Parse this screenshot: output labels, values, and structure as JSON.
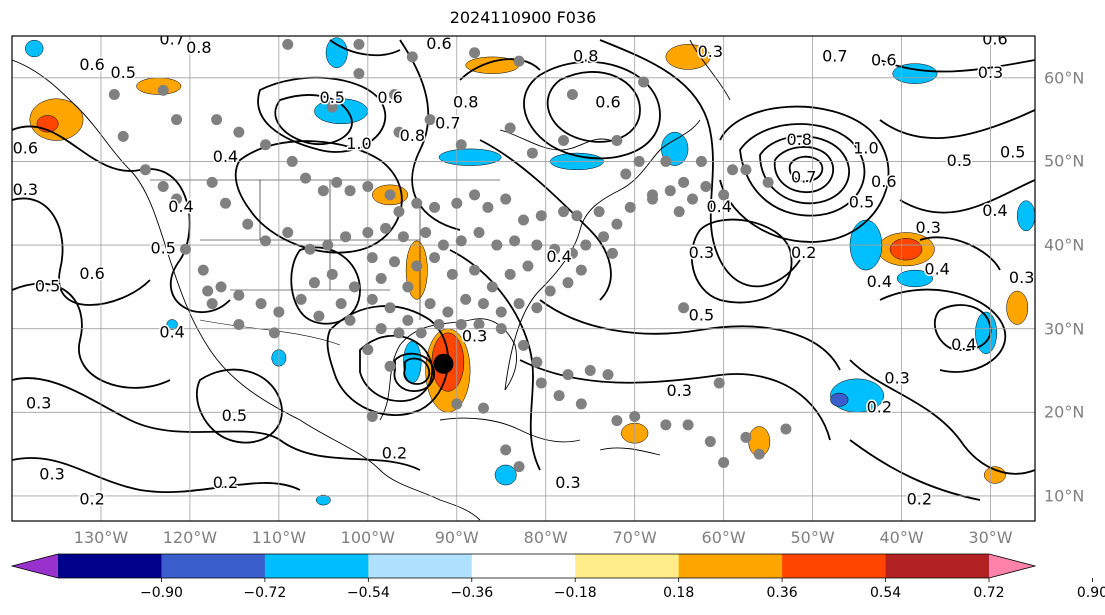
{
  "title": "2024110900 F036",
  "map": {
    "projection": "plate-carree",
    "lon_range": [
      -140,
      -25
    ],
    "lat_range": [
      7,
      65
    ],
    "lon_labels": [
      {
        "lon": -130,
        "text": "130°W"
      },
      {
        "lon": -120,
        "text": "120°W"
      },
      {
        "lon": -110,
        "text": "110°W"
      },
      {
        "lon": -100,
        "text": "100°W"
      },
      {
        "lon": -90,
        "text": "90°W"
      },
      {
        "lon": -80,
        "text": "80°W"
      },
      {
        "lon": -70,
        "text": "70°W"
      },
      {
        "lon": -60,
        "text": "60°W"
      },
      {
        "lon": -50,
        "text": "50°W"
      },
      {
        "lon": -40,
        "text": "40°W"
      },
      {
        "lon": -30,
        "text": "30°W"
      }
    ],
    "lat_labels": [
      {
        "lat": 60,
        "text": "60°N"
      },
      {
        "lat": 50,
        "text": "50°N"
      },
      {
        "lat": 40,
        "text": "40°N"
      },
      {
        "lat": 30,
        "text": "30°N"
      },
      {
        "lat": 20,
        "text": "20°N"
      },
      {
        "lat": 10,
        "text": "10°N"
      }
    ],
    "gridlines": true,
    "contour_labels": [
      {
        "lon": -127.5,
        "lat": 60.5,
        "text": "0.5"
      },
      {
        "lon": -131,
        "lat": 61.5,
        "text": "0.6"
      },
      {
        "lon": -119,
        "lat": 63.5,
        "text": "0.8"
      },
      {
        "lon": -122,
        "lat": 64.5,
        "text": "0.7"
      },
      {
        "lon": -92,
        "lat": 64,
        "text": "0.6"
      },
      {
        "lon": -75.5,
        "lat": 62.5,
        "text": "0.8"
      },
      {
        "lon": -73,
        "lat": 57,
        "text": "0.6"
      },
      {
        "lon": -61.5,
        "lat": 63,
        "text": "0.3"
      },
      {
        "lon": -47.5,
        "lat": 62.5,
        "text": "0.7"
      },
      {
        "lon": -42,
        "lat": 62,
        "text": "0.6"
      },
      {
        "lon": -29.5,
        "lat": 64.5,
        "text": "0.6"
      },
      {
        "lon": -30,
        "lat": 60.5,
        "text": "0.3"
      },
      {
        "lon": -138.5,
        "lat": 51.5,
        "text": "0.6"
      },
      {
        "lon": -138.5,
        "lat": 46.5,
        "text": "0.3"
      },
      {
        "lon": -121,
        "lat": 44.5,
        "text": "0.4"
      },
      {
        "lon": -123,
        "lat": 39.5,
        "text": "0.5"
      },
      {
        "lon": -131,
        "lat": 36.5,
        "text": "0.6"
      },
      {
        "lon": -136,
        "lat": 35,
        "text": "0.5"
      },
      {
        "lon": -116,
        "lat": 50.5,
        "text": "0.4"
      },
      {
        "lon": -104,
        "lat": 57.5,
        "text": "0.5"
      },
      {
        "lon": -101,
        "lat": 52,
        "text": "1.0"
      },
      {
        "lon": -97.5,
        "lat": 57.5,
        "text": "0.6"
      },
      {
        "lon": -95,
        "lat": 53,
        "text": "0.8"
      },
      {
        "lon": -91,
        "lat": 54.5,
        "text": "0.7"
      },
      {
        "lon": -89,
        "lat": 57,
        "text": "0.8"
      },
      {
        "lon": -122,
        "lat": 29.5,
        "text": "0.4"
      },
      {
        "lon": -115,
        "lat": 19.5,
        "text": "0.5"
      },
      {
        "lon": -137,
        "lat": 21,
        "text": "0.3"
      },
      {
        "lon": -135.5,
        "lat": 12.5,
        "text": "0.3"
      },
      {
        "lon": -131,
        "lat": 9.5,
        "text": "0.2"
      },
      {
        "lon": -116,
        "lat": 11.5,
        "text": "0.2"
      },
      {
        "lon": -97,
        "lat": 15,
        "text": "0.2"
      },
      {
        "lon": -77.5,
        "lat": 11.5,
        "text": "0.3"
      },
      {
        "lon": -88,
        "lat": 29,
        "text": "0.3"
      },
      {
        "lon": -78.5,
        "lat": 38.5,
        "text": "0.4"
      },
      {
        "lon": -62.5,
        "lat": 31.5,
        "text": "0.5"
      },
      {
        "lon": -65,
        "lat": 22.5,
        "text": "0.3"
      },
      {
        "lon": -60.5,
        "lat": 44.5,
        "text": "0.4"
      },
      {
        "lon": -62.5,
        "lat": 39,
        "text": "0.3"
      },
      {
        "lon": -51,
        "lat": 39,
        "text": "0.2"
      },
      {
        "lon": -51,
        "lat": 48,
        "text": "0.7"
      },
      {
        "lon": -51.5,
        "lat": 52.5,
        "text": "0.8"
      },
      {
        "lon": -44,
        "lat": 51.5,
        "text": "1.0"
      },
      {
        "lon": -44.5,
        "lat": 45,
        "text": "0.5"
      },
      {
        "lon": -42,
        "lat": 47.5,
        "text": "0.6"
      },
      {
        "lon": -42.5,
        "lat": 35.5,
        "text": "0.4"
      },
      {
        "lon": -37,
        "lat": 42,
        "text": "0.3"
      },
      {
        "lon": -36,
        "lat": 37,
        "text": "0.4"
      },
      {
        "lon": -33.5,
        "lat": 50,
        "text": "0.5"
      },
      {
        "lon": -27.5,
        "lat": 51,
        "text": "0.5"
      },
      {
        "lon": -29.5,
        "lat": 44,
        "text": "0.4"
      },
      {
        "lon": -40.5,
        "lat": 24,
        "text": "0.3"
      },
      {
        "lon": -42.5,
        "lat": 20.5,
        "text": "0.2"
      },
      {
        "lon": -33,
        "lat": 28,
        "text": "0.4"
      },
      {
        "lon": -38,
        "lat": 9.5,
        "text": "0.2"
      },
      {
        "lon": -26.5,
        "lat": 36,
        "text": "0.3"
      }
    ],
    "station_points": [
      [
        -127.5,
        53.0
      ],
      [
        -128.5,
        58.0
      ],
      [
        -123.0,
        58.5
      ],
      [
        -121.5,
        55.0
      ],
      [
        -117.0,
        55.0
      ],
      [
        -114.5,
        53.5
      ],
      [
        -111.5,
        52.0
      ],
      [
        -108.5,
        50.0
      ],
      [
        -107.0,
        48.0
      ],
      [
        -105.0,
        46.5
      ],
      [
        -103.5,
        47.5
      ],
      [
        -102.0,
        46.5
      ],
      [
        -100.0,
        47.0
      ],
      [
        -97.5,
        46.0
      ],
      [
        -96.5,
        44.0
      ],
      [
        -94.5,
        45.0
      ],
      [
        -92.5,
        44.5
      ],
      [
        -90.0,
        45.0
      ],
      [
        -88.0,
        46.0
      ],
      [
        -86.5,
        44.5
      ],
      [
        -84.5,
        45.5
      ],
      [
        -82.5,
        43.0
      ],
      [
        -80.5,
        43.5
      ],
      [
        -78.0,
        44.0
      ],
      [
        -76.5,
        43.5
      ],
      [
        -74.0,
        44.0
      ],
      [
        -72.0,
        42.5
      ],
      [
        -70.5,
        44.5
      ],
      [
        -68.0,
        45.5
      ],
      [
        -66.0,
        46.5
      ],
      [
        -64.5,
        47.5
      ],
      [
        -62.0,
        47.0
      ],
      [
        -71.0,
        48.5
      ],
      [
        -69.5,
        50.0
      ],
      [
        -66.5,
        50.0
      ],
      [
        -72.0,
        52.5
      ],
      [
        -78.0,
        52.5
      ],
      [
        -81.5,
        51.0
      ],
      [
        -84.0,
        54.0
      ],
      [
        -89.5,
        52.0
      ],
      [
        -93.0,
        55.0
      ],
      [
        -97.0,
        58.0
      ],
      [
        -101.0,
        60.5
      ],
      [
        -109.0,
        64.0
      ],
      [
        -101.0,
        64.0
      ],
      [
        -95.0,
        62.5
      ],
      [
        -88.0,
        63.0
      ],
      [
        -83.0,
        62.0
      ],
      [
        -77.0,
        58.0
      ],
      [
        -69.0,
        59.5
      ],
      [
        -125.0,
        49.0
      ],
      [
        -123.0,
        47.0
      ],
      [
        -121.5,
        45.5
      ],
      [
        -117.5,
        47.5
      ],
      [
        -116.0,
        45.0
      ],
      [
        -113.5,
        42.5
      ],
      [
        -111.5,
        40.5
      ],
      [
        -109.0,
        41.5
      ],
      [
        -106.5,
        39.5
      ],
      [
        -104.5,
        40.0
      ],
      [
        -102.5,
        41.0
      ],
      [
        -100.0,
        41.5
      ],
      [
        -98.0,
        42.0
      ],
      [
        -96.0,
        41.0
      ],
      [
        -93.5,
        41.5
      ],
      [
        -91.5,
        40.0
      ],
      [
        -89.5,
        40.5
      ],
      [
        -87.5,
        41.5
      ],
      [
        -85.5,
        40.0
      ],
      [
        -83.5,
        40.5
      ],
      [
        -81.0,
        40.0
      ],
      [
        -79.0,
        39.5
      ],
      [
        -77.0,
        39.0
      ],
      [
        -75.5,
        40.0
      ],
      [
        -73.5,
        41.0
      ],
      [
        -72.5,
        39.0
      ],
      [
        -120.5,
        39.5
      ],
      [
        -118.5,
        37.0
      ],
      [
        -116.5,
        35.0
      ],
      [
        -114.5,
        34.0
      ],
      [
        -112.0,
        33.0
      ],
      [
        -110.0,
        32.0
      ],
      [
        -107.5,
        33.5
      ],
      [
        -106.0,
        35.5
      ],
      [
        -104.0,
        36.5
      ],
      [
        -101.5,
        35.0
      ],
      [
        -99.5,
        33.5
      ],
      [
        -97.5,
        32.5
      ],
      [
        -95.5,
        31.0
      ],
      [
        -93.0,
        33.0
      ],
      [
        -91.0,
        32.0
      ],
      [
        -89.0,
        33.5
      ],
      [
        -87.0,
        33.0
      ],
      [
        -85.0,
        32.0
      ],
      [
        -83.0,
        33.0
      ],
      [
        -81.0,
        32.5
      ],
      [
        -79.5,
        34.5
      ],
      [
        -77.5,
        35.5
      ],
      [
        -76.0,
        37.0
      ],
      [
        -86.0,
        35.0
      ],
      [
        -84.0,
        36.5
      ],
      [
        -82.0,
        37.5
      ],
      [
        -88.0,
        37.0
      ],
      [
        -90.5,
        36.5
      ],
      [
        -94.5,
        37.5
      ],
      [
        -97.0,
        38.0
      ],
      [
        -99.5,
        38.5
      ],
      [
        -92.5,
        38.5
      ],
      [
        -95.5,
        35.0
      ],
      [
        -98.5,
        36.0
      ],
      [
        -103.0,
        33.0
      ],
      [
        -102.0,
        31.0
      ],
      [
        -98.5,
        30.0
      ],
      [
        -96.5,
        29.5
      ],
      [
        -94.0,
        29.5
      ],
      [
        -92.0,
        30.5
      ],
      [
        -89.5,
        30.5
      ],
      [
        -87.5,
        30.5
      ],
      [
        -85.0,
        30.0
      ],
      [
        -82.5,
        28.0
      ],
      [
        -81.0,
        26.0
      ],
      [
        -100.0,
        27.5
      ],
      [
        -97.5,
        25.5
      ],
      [
        -105.5,
        31.5
      ],
      [
        -110.5,
        29.5
      ],
      [
        -114.5,
        30.5
      ],
      [
        -117.5,
        33.0
      ],
      [
        -118.0,
        34.5
      ],
      [
        -99.5,
        19.5
      ],
      [
        -90.0,
        21.0
      ],
      [
        -87.0,
        20.5
      ],
      [
        -80.5,
        23.5
      ],
      [
        -78.5,
        22.0
      ],
      [
        -76.0,
        21.0
      ],
      [
        -72.0,
        19.0
      ],
      [
        -70.0,
        19.5
      ],
      [
        -66.5,
        18.5
      ],
      [
        -64.0,
        18.5
      ],
      [
        -83.0,
        13.5
      ],
      [
        -84.5,
        15.5
      ],
      [
        -61.5,
        16.5
      ],
      [
        -60.0,
        14.0
      ],
      [
        -56.0,
        15.0
      ],
      [
        -57.5,
        17.0
      ],
      [
        -53.0,
        18.0
      ],
      [
        -60.5,
        23.5
      ],
      [
        -64.5,
        32.5
      ],
      [
        -77.5,
        24.5
      ],
      [
        -75.0,
        25.0
      ],
      [
        -73.0,
        24.5
      ],
      [
        -68.0,
        46.0
      ],
      [
        -65.0,
        44.0
      ],
      [
        -63.5,
        45.5
      ],
      [
        -60.0,
        46.0
      ],
      [
        -57.5,
        49.0
      ],
      [
        -55.0,
        47.5
      ],
      [
        -59.0,
        49.0
      ],
      [
        -62.5,
        50.0
      ],
      [
        -96.5,
        53.5
      ],
      [
        -104.0,
        56.5
      ]
    ],
    "surface_low_center": {
      "lon": -91.5,
      "lat": 25.8
    },
    "shaded_regions": [
      {
        "level": "pos1",
        "lon": -94.5,
        "lat": 37.0,
        "rx": 1.2,
        "ry": 3.5
      },
      {
        "level": "pos1",
        "lon": -97.5,
        "lat": 46.0,
        "rx": 2.0,
        "ry": 1.2
      },
      {
        "level": "pos1",
        "lon": -123.5,
        "lat": 59.0,
        "rx": 2.5,
        "ry": 1.0
      },
      {
        "level": "pos1",
        "lon": -135.0,
        "lat": 55.0,
        "rx": 3.0,
        "ry": 2.5
      },
      {
        "level": "pos2",
        "lon": -136.0,
        "lat": 54.5,
        "rx": 1.2,
        "ry": 1.0
      },
      {
        "level": "pos1",
        "lon": -86.0,
        "lat": 61.5,
        "rx": 3.0,
        "ry": 1.0
      },
      {
        "level": "pos1",
        "lon": -64.0,
        "lat": 62.5,
        "rx": 2.5,
        "ry": 1.5
      },
      {
        "level": "pos1",
        "lon": -91.0,
        "lat": 25.0,
        "rx": 2.5,
        "ry": 5.0
      },
      {
        "level": "pos2",
        "lon": -91.0,
        "lat": 26.0,
        "rx": 1.8,
        "ry": 3.5
      },
      {
        "level": "pos1",
        "lon": -70.0,
        "lat": 17.5,
        "rx": 1.5,
        "ry": 1.2
      },
      {
        "level": "pos1",
        "lon": -56.0,
        "lat": 16.5,
        "rx": 1.2,
        "ry": 1.8
      },
      {
        "level": "pos1",
        "lon": -39.5,
        "lat": 39.5,
        "rx": 3.2,
        "ry": 2.0
      },
      {
        "level": "pos2",
        "lon": -39.5,
        "lat": 39.5,
        "rx": 1.8,
        "ry": 1.3
      },
      {
        "level": "pos1",
        "lon": -27.0,
        "lat": 32.5,
        "rx": 1.2,
        "ry": 2.0
      },
      {
        "level": "pos1",
        "lon": -29.5,
        "lat": 12.5,
        "rx": 1.2,
        "ry": 1.0
      },
      {
        "level": "neg1",
        "lon": -103.0,
        "lat": 56.0,
        "rx": 3.0,
        "ry": 1.5
      },
      {
        "level": "neg1",
        "lon": -88.5,
        "lat": 50.5,
        "rx": 3.5,
        "ry": 1.0
      },
      {
        "level": "neg1",
        "lon": -76.5,
        "lat": 50.0,
        "rx": 3.0,
        "ry": 1.0
      },
      {
        "level": "neg1",
        "lon": -103.5,
        "lat": 63.0,
        "rx": 1.2,
        "ry": 1.8
      },
      {
        "level": "neg1",
        "lon": -137.5,
        "lat": 63.5,
        "rx": 1.0,
        "ry": 1.0
      },
      {
        "level": "neg1",
        "lon": -65.5,
        "lat": 51.5,
        "rx": 1.5,
        "ry": 2.0
      },
      {
        "level": "neg1",
        "lon": -44.0,
        "lat": 40.0,
        "rx": 1.8,
        "ry": 3.0
      },
      {
        "level": "neg1",
        "lon": -38.5,
        "lat": 60.5,
        "rx": 2.5,
        "ry": 1.2
      },
      {
        "level": "neg1",
        "lon": -26.0,
        "lat": 43.5,
        "rx": 1.0,
        "ry": 1.8
      },
      {
        "level": "neg1",
        "lon": -30.5,
        "lat": 29.5,
        "rx": 1.2,
        "ry": 2.5
      },
      {
        "level": "neg1",
        "lon": -45.0,
        "lat": 22.0,
        "rx": 3.0,
        "ry": 2.0
      },
      {
        "level": "neg2",
        "lon": -47.0,
        "lat": 21.5,
        "rx": 1.0,
        "ry": 0.8
      },
      {
        "level": "neg1",
        "lon": -95.0,
        "lat": 26.0,
        "rx": 1.0,
        "ry": 2.5
      },
      {
        "level": "neg1",
        "lon": -110.0,
        "lat": 26.5,
        "rx": 0.8,
        "ry": 1.0
      },
      {
        "level": "neg1",
        "lon": -84.5,
        "lat": 12.5,
        "rx": 1.2,
        "ry": 1.2
      },
      {
        "level": "neg1",
        "lon": -105.0,
        "lat": 9.5,
        "rx": 0.8,
        "ry": 0.6
      },
      {
        "level": "neg1",
        "lon": -122.0,
        "lat": 30.5,
        "rx": 0.6,
        "ry": 0.6
      },
      {
        "level": "neg1",
        "lon": -38.5,
        "lat": 36.0,
        "rx": 2.0,
        "ry": 1.0
      }
    ]
  },
  "colorbar": {
    "colors": [
      "#9932cc",
      "#00008b",
      "#3a5fcd",
      "#00bfff",
      "#b0e2ff",
      "#ffffff",
      "#ffec8b",
      "#ffa500",
      "#ff4500",
      "#b22222",
      "#ff82ab"
    ],
    "ticks": [
      "−0.90",
      "−0.72",
      "−0.54",
      "−0.36",
      "−0.18",
      "0.18",
      "0.36",
      "0.54",
      "0.72",
      "0.90"
    ]
  },
  "level_colors": {
    "neg2": "#3a5fcd",
    "neg1": "#00bfff",
    "pos1": "#ffa500",
    "pos2": "#ff4500"
  }
}
